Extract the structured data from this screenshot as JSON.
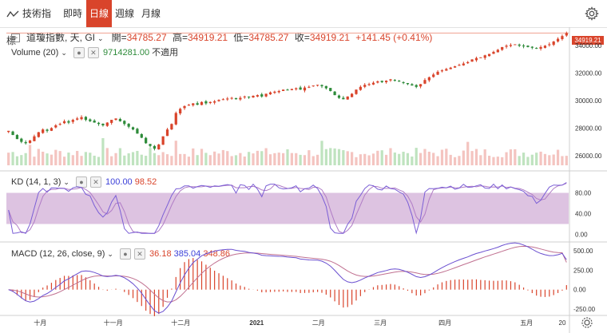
{
  "toolbar": {
    "technical_indicators": "技術指標",
    "tabs": [
      {
        "label": "即時",
        "active": false
      },
      {
        "label": "日線",
        "active": true
      },
      {
        "label": "週線",
        "active": false
      },
      {
        "label": "月線",
        "active": false
      }
    ],
    "accent_color": "#d9442b"
  },
  "header": {
    "symbol": "道瓊指數, 天, GI",
    "open_label": "開=",
    "open": "34785.27",
    "high_label": "高=",
    "high": "34919.21",
    "low_label": "低=",
    "low": "34785.27",
    "close_label": "收=",
    "close": "34919.21",
    "change": "+141.45 (+0.41%)",
    "last_price_tag": "34919.21"
  },
  "volume_legend": {
    "label": "Volume (20)",
    "value": "9714281.00",
    "note": "不適用"
  },
  "kd_legend": {
    "label": "KD (14, 1, 3)",
    "k": "100.00",
    "d": "98.52"
  },
  "macd_legend": {
    "label": "MACD (12, 26, close, 9)",
    "hist": "36.18",
    "macd": "385.04",
    "signal": "348.86"
  },
  "colors": {
    "up": "#d9442b",
    "down": "#2e8b3a",
    "vol_up": "#f4c4c0",
    "vol_down": "#bfe3bf",
    "kd_band": "#d7b8dc",
    "k_line": "#7b5fd6",
    "d_line": "#b07cc6",
    "macd_line": "#6a4fd0",
    "signal_line": "#c07090"
  },
  "chart_data": [
    {
      "type": "candlestick",
      "title": "道瓊指數, 天, GI",
      "x_labels": [
        "十月",
        "十一月",
        "十二月",
        "2021",
        "二月",
        "三月",
        "四月",
        "五月",
        "20"
      ],
      "ylim": [
        25000,
        35000
      ],
      "y_ticks": [
        "34000.00",
        "32000.00",
        "30000.00",
        "28000.00",
        "26000.00"
      ],
      "close_series": [
        27800,
        27500,
        27200,
        27000,
        26900,
        27100,
        27400,
        27700,
        27900,
        27800,
        28000,
        28200,
        28300,
        28500,
        28400,
        28600,
        28700,
        28800,
        28600,
        28500,
        28400,
        28300,
        28200,
        28400,
        28600,
        28700,
        28500,
        28300,
        28100,
        27900,
        27600,
        27300,
        26900,
        26700,
        26500,
        26800,
        27400,
        27900,
        28300,
        29100,
        29400,
        29600,
        29700,
        29800,
        29700,
        29900,
        29800,
        29900,
        29950,
        30050,
        30100,
        30150,
        30200,
        30100,
        30200,
        30300,
        30250,
        30350,
        30400,
        30300,
        30500,
        30600,
        30650,
        30700,
        30800,
        30750,
        30850,
        30900,
        30800,
        30950,
        31000,
        31100,
        31150,
        31050,
        30900,
        30700,
        30400,
        30200,
        30100,
        30300,
        30500,
        30800,
        31000,
        31150,
        31200,
        31300,
        31400,
        31350,
        31450,
        31550,
        31500,
        31400,
        31300,
        31200,
        31100,
        31000,
        31200,
        31500,
        31700,
        31900,
        32100,
        32200,
        32300,
        32400,
        32500,
        32600,
        32700,
        32800,
        33000,
        33100,
        33150,
        33300,
        33400,
        33550,
        33700,
        33900,
        34000,
        34050,
        34100,
        34000,
        33950,
        33900,
        33850,
        33800,
        33900,
        34000,
        34100,
        34300,
        34500,
        34700,
        34919
      ],
      "volume_ylim": [
        0,
        9714281
      ],
      "volume_note": "不適用"
    },
    {
      "type": "line",
      "title": "KD (14, 1, 3)",
      "ylim": [
        -10,
        110
      ],
      "y_ticks": [
        "80.00",
        "40.00",
        "0.00"
      ],
      "band": [
        20,
        80
      ],
      "series": [
        {
          "name": "K",
          "last": 100.0
        },
        {
          "name": "D",
          "last": 98.52
        }
      ]
    },
    {
      "type": "line",
      "title": "MACD (12, 26, close, 9)",
      "ylim": [
        -300,
        560
      ],
      "y_ticks": [
        "500.00",
        "250.00",
        "0.00",
        "-250.00"
      ],
      "series": [
        {
          "name": "histogram",
          "last": 36.18
        },
        {
          "name": "MACD",
          "last": 385.04
        },
        {
          "name": "Signal",
          "last": 348.86
        }
      ]
    }
  ]
}
